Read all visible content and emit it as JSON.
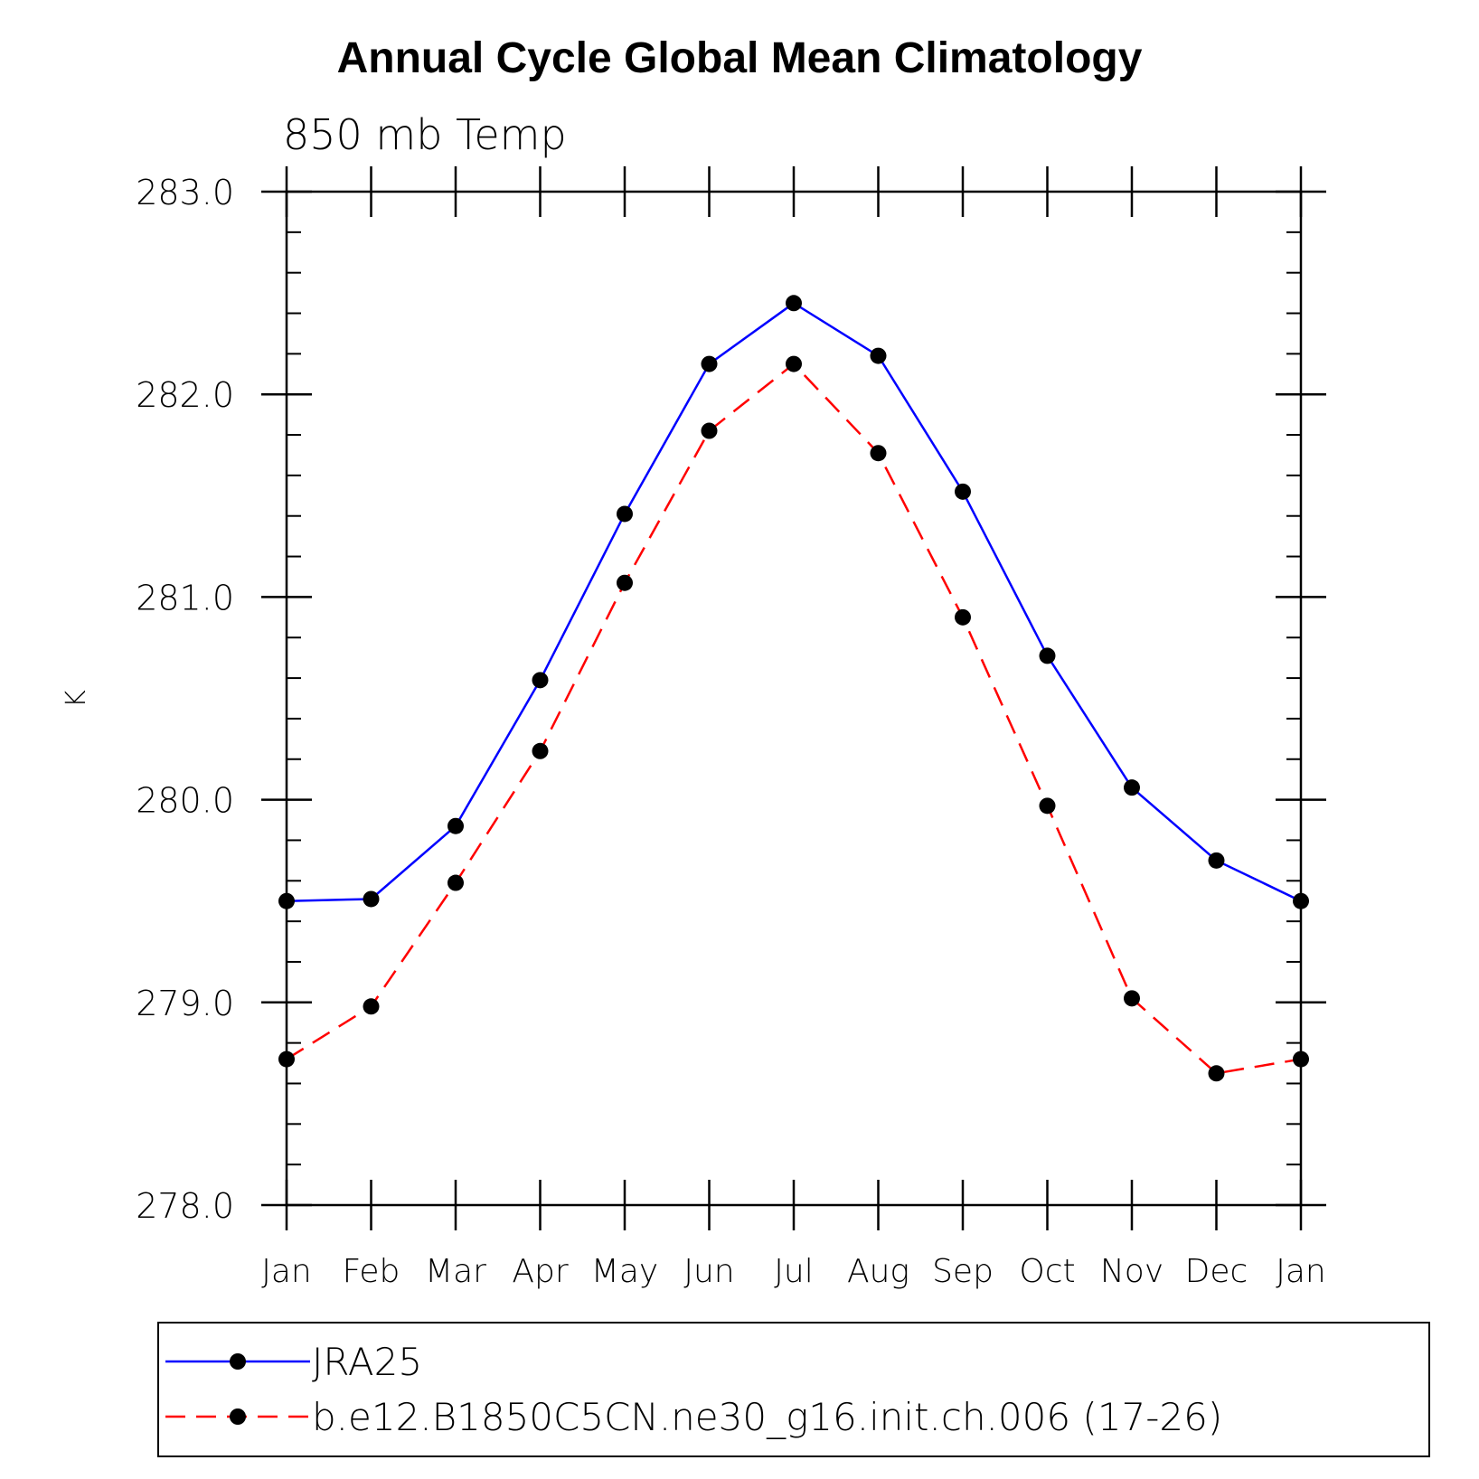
{
  "chart_data": {
    "type": "line",
    "title": "Annual Cycle Global Mean Climatology",
    "subtitle": "850 mb Temp",
    "ylabel": "K",
    "xlabel": "",
    "categories": [
      "Jan",
      "Feb",
      "Mar",
      "Apr",
      "May",
      "Jun",
      "Jul",
      "Aug",
      "Sep",
      "Oct",
      "Nov",
      "Dec",
      "Jan"
    ],
    "ylim": [
      278.0,
      283.0
    ],
    "yticks": [
      "278.0",
      "279.0",
      "280.0",
      "281.0",
      "282.0",
      "283.0"
    ],
    "grid": false,
    "legend_position": "bottom",
    "series": [
      {
        "name": "JRA25",
        "color": "#0000ff",
        "style": "solid",
        "marker": "filled-circle",
        "values": [
          279.5,
          279.51,
          279.87,
          280.59,
          281.41,
          282.15,
          282.45,
          282.19,
          281.52,
          280.71,
          280.06,
          279.7,
          279.5
        ]
      },
      {
        "name": "b.e12.B1850C5CN.ne30_g16.init.ch.006 (17-26)",
        "color": "#ff0000",
        "style": "dashed",
        "marker": "filled-circle",
        "values": [
          278.72,
          278.98,
          279.59,
          280.24,
          281.07,
          281.82,
          282.15,
          281.71,
          280.9,
          279.97,
          279.02,
          278.65,
          278.72
        ]
      }
    ]
  }
}
